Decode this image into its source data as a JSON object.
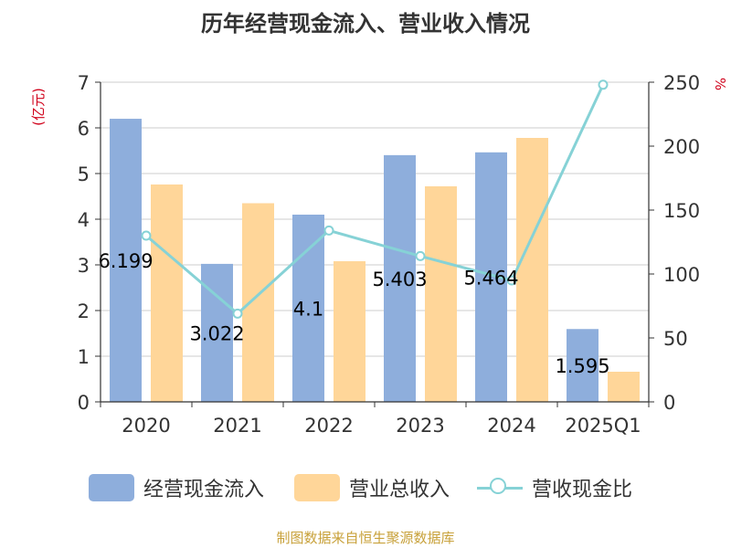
{
  "title": "历年经营现金流入、营业收入情况",
  "source": "制图数据来自恒生聚源数据库",
  "colors": {
    "cash_inflow": "#8eaedc",
    "revenue": "#ffd699",
    "ratio": "#86d2d6",
    "axis": "#333333",
    "grid": "#cccccc",
    "unit": "#d0021b"
  },
  "chart_data": {
    "type": "bar",
    "title": "历年经营现金流入、营业收入情况",
    "categories": [
      "2020",
      "2021",
      "2022",
      "2023",
      "2024",
      "2025Q1"
    ],
    "y_left": {
      "label": "(亿元)",
      "min": 0,
      "max": 7,
      "ticks": [
        "0",
        "1",
        "2",
        "3",
        "4",
        "5",
        "6",
        "7"
      ]
    },
    "y_right": {
      "label": "%",
      "min": 0,
      "max": 250,
      "ticks": [
        "0",
        "50",
        "100",
        "150",
        "200",
        "250"
      ]
    },
    "grid": true,
    "legend_position": "bottom",
    "series": [
      {
        "name": "经营现金流入",
        "type": "bar",
        "axis": "left",
        "values": [
          6.199,
          3.022,
          4.1,
          5.403,
          5.464,
          1.595
        ],
        "labels": [
          "6.199",
          "3.022",
          "4.1",
          "5.403",
          "5.464",
          "1.595"
        ]
      },
      {
        "name": "营业总收入",
        "type": "bar",
        "axis": "left",
        "values": [
          4.76,
          4.35,
          3.08,
          4.72,
          5.78,
          0.66
        ]
      },
      {
        "name": "营收现金比",
        "type": "line",
        "axis": "right",
        "values": [
          130,
          69,
          134,
          114,
          95,
          248
        ]
      }
    ]
  }
}
